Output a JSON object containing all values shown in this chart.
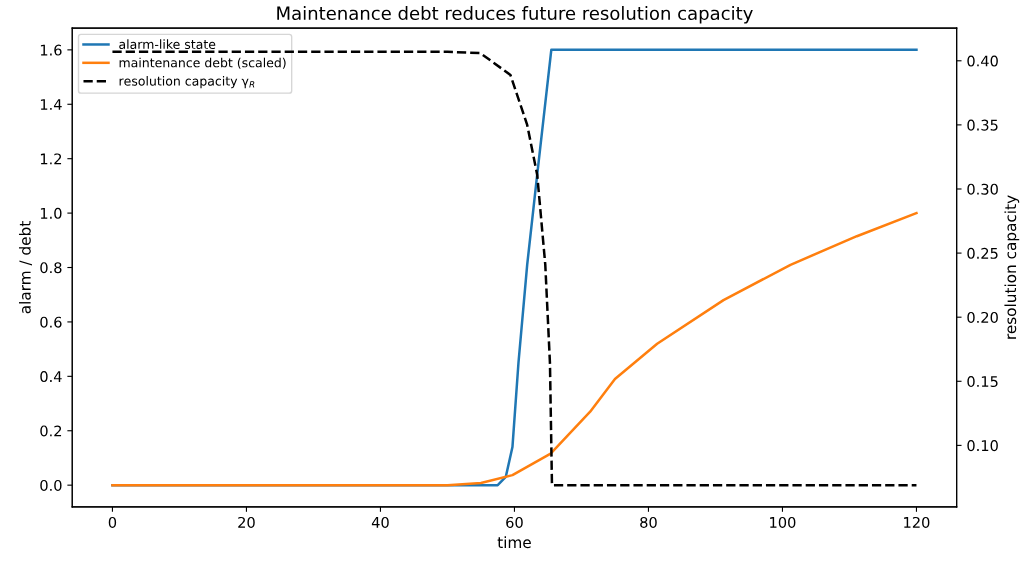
{
  "chart_data": {
    "type": "line",
    "title": "Maintenance debt reduces future resolution capacity",
    "xlabel": "time",
    "ylabel": "alarm / debt",
    "y2label": "resolution capacity",
    "xlim": [
      -6,
      126
    ],
    "xticks": [
      0,
      20,
      40,
      60,
      80,
      100,
      120
    ],
    "ylim": [
      -0.08,
      1.68
    ],
    "yticks": [
      {
        "value": 0,
        "label": "0.0"
      },
      {
        "value": 0.2,
        "label": "0.2"
      },
      {
        "value": 0.4,
        "label": "0.4"
      },
      {
        "value": 0.6,
        "label": "0.6"
      },
      {
        "value": 0.8,
        "label": "0.8"
      },
      {
        "value": 1.0,
        "label": "1.0"
      },
      {
        "value": 1.2,
        "label": "1.2"
      },
      {
        "value": 1.4,
        "label": "1.4"
      },
      {
        "value": 1.6,
        "label": "1.6"
      }
    ],
    "y2lim": [
      0.052,
      0.4255
    ],
    "y2ticks": [
      {
        "value": 0.1,
        "label": "0.10"
      },
      {
        "value": 0.15,
        "label": "0.15"
      },
      {
        "value": 0.2,
        "label": "0.20"
      },
      {
        "value": 0.25,
        "label": "0.25"
      },
      {
        "value": 0.3,
        "label": "0.30"
      },
      {
        "value": 0.35,
        "label": "0.35"
      },
      {
        "value": 0.4,
        "label": "0.40"
      }
    ],
    "grid": false,
    "legend": "top left",
    "series": [
      {
        "name": "alarm-like state",
        "color": "#1f77b4",
        "line_style": "solid",
        "x": [
          0,
          57.5,
          58.7,
          59.7,
          60.6,
          61.9,
          63.3,
          65.5,
          120
        ],
        "values": [
          0,
          0,
          0.03,
          0.14,
          0.45,
          0.81,
          1.12,
          1.6,
          1.6
        ]
      },
      {
        "name": "maintenance debt (scaled)",
        "color": "#ff7f0e",
        "line_style": "solid",
        "x": [
          0,
          50,
          55,
          59.7,
          65.4,
          71.3,
          75,
          81.3,
          91.2,
          101.2,
          111.1,
          120
        ],
        "values": [
          0,
          0,
          0.008,
          0.037,
          0.116,
          0.27,
          0.39,
          0.52,
          0.68,
          0.81,
          0.915,
          1.0
        ]
      },
      {
        "name": "resolution capacity γ$_{R}$",
        "color": "#000000",
        "line_style": "dashed",
        "axis": "y2",
        "x": [
          0,
          50,
          54.9,
          59.4,
          61.9,
          63.4,
          64.6,
          65.3,
          65.6,
          120
        ],
        "values": [
          0.407,
          0.407,
          0.406,
          0.389,
          0.35,
          0.311,
          0.241,
          0.164,
          0.069,
          0.069
        ]
      }
    ]
  }
}
